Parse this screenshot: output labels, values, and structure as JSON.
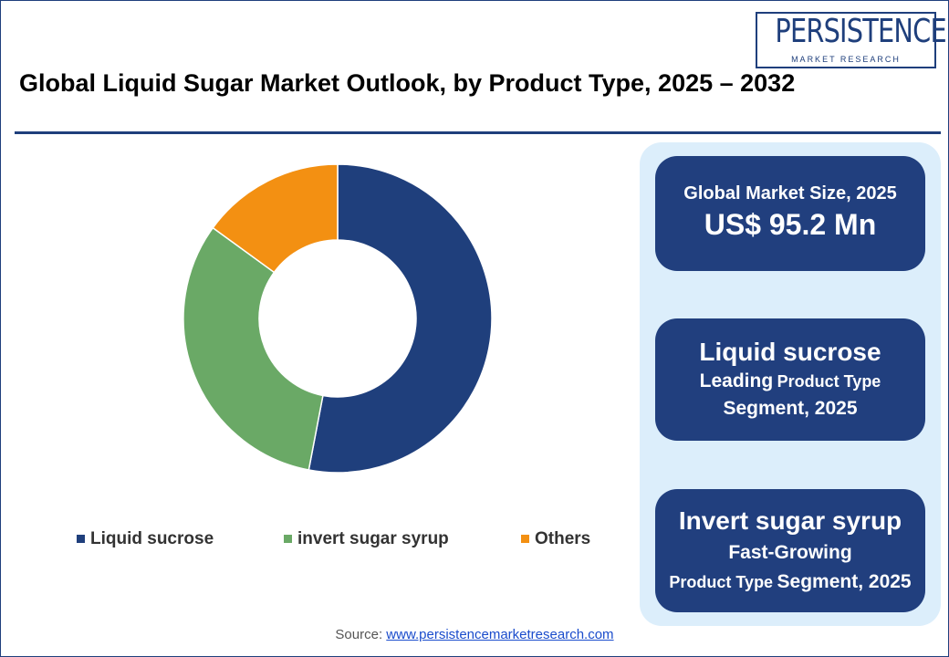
{
  "logo": {
    "name": "PERSISTENCE",
    "tagline": "MARKET RESEARCH"
  },
  "chart_data": {
    "type": "donut",
    "title": "Global Liquid Sugar Market Outlook, by Product Type, 2025 – 2032",
    "categories": [
      "Liquid sucrose",
      "invert sugar syrup",
      "Others"
    ],
    "values": [
      53,
      32,
      15
    ],
    "colors": [
      "#1f3f7c",
      "#6aa966",
      "#f39012"
    ]
  },
  "cards": [
    {
      "heading": "Global Market Size, 2025",
      "value": "US$ 95.2 Mn"
    },
    {
      "heading": "Liquid sucrose",
      "tag": "Leading",
      "label": "Product Type",
      "tail": "Segment, 2025"
    },
    {
      "heading": "Invert sugar syrup",
      "tag": "Fast-Growing",
      "label": "Product Type",
      "tail": "Segment, 2025"
    }
  ],
  "source": {
    "label": "Source:",
    "link": "www.persistencemarketresearch.com"
  }
}
